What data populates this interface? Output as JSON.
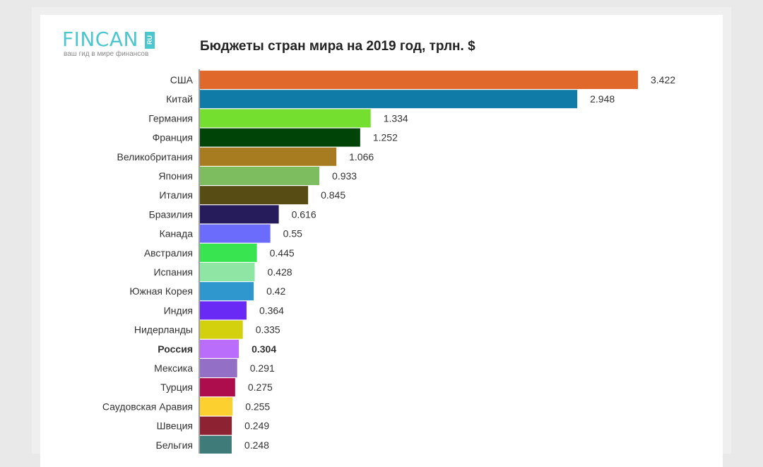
{
  "logo": {
    "word": "FINCAN",
    "badge": "RU",
    "tagline": "ваш гид в мире финансов"
  },
  "chart_data": {
    "type": "bar",
    "orientation": "horizontal",
    "title": "Бюджеты стран мира на 2019 год, трлн. $",
    "xlabel": "",
    "ylabel": "",
    "xlim": [
      0,
      3.5
    ],
    "grid": false,
    "legend": "none",
    "highlight": "Россия",
    "categories": [
      "США",
      "Китай",
      "Германия",
      "Франция",
      "Великобритания",
      "Япония",
      "Италия",
      "Бразилия",
      "Канада",
      "Австралия",
      "Испания",
      "Южная Корея",
      "Индия",
      "Нидерланды",
      "Россия",
      "Мексика",
      "Турция",
      "Саудовская Аравия",
      "Швеция",
      "Бельгия"
    ],
    "values": [
      3.422,
      2.948,
      1.334,
      1.252,
      1.066,
      0.933,
      0.845,
      0.616,
      0.55,
      0.445,
      0.428,
      0.42,
      0.364,
      0.335,
      0.304,
      0.291,
      0.275,
      0.255,
      0.249,
      0.248
    ],
    "value_labels": [
      "3.422",
      "2.948",
      "1.334",
      "1.252",
      "1.066",
      "0.933",
      "0.845",
      "0.616",
      "0.55",
      "0.445",
      "0.428",
      "0.42",
      "0.364",
      "0.335",
      "0.304",
      "0.291",
      "0.275",
      "0.255",
      "0.249",
      "0.248"
    ],
    "colors": [
      "#e0682b",
      "#0f7ba6",
      "#74df2f",
      "#014408",
      "#a77b1f",
      "#7dbd5f",
      "#574d14",
      "#261c5c",
      "#6b6cfc",
      "#38e44f",
      "#8fe6a4",
      "#2f97cd",
      "#6a2af5",
      "#d3d10d",
      "#b96dfa",
      "#9370c6",
      "#ad0c4d",
      "#fcd02e",
      "#8c2232",
      "#3f7b79"
    ]
  }
}
